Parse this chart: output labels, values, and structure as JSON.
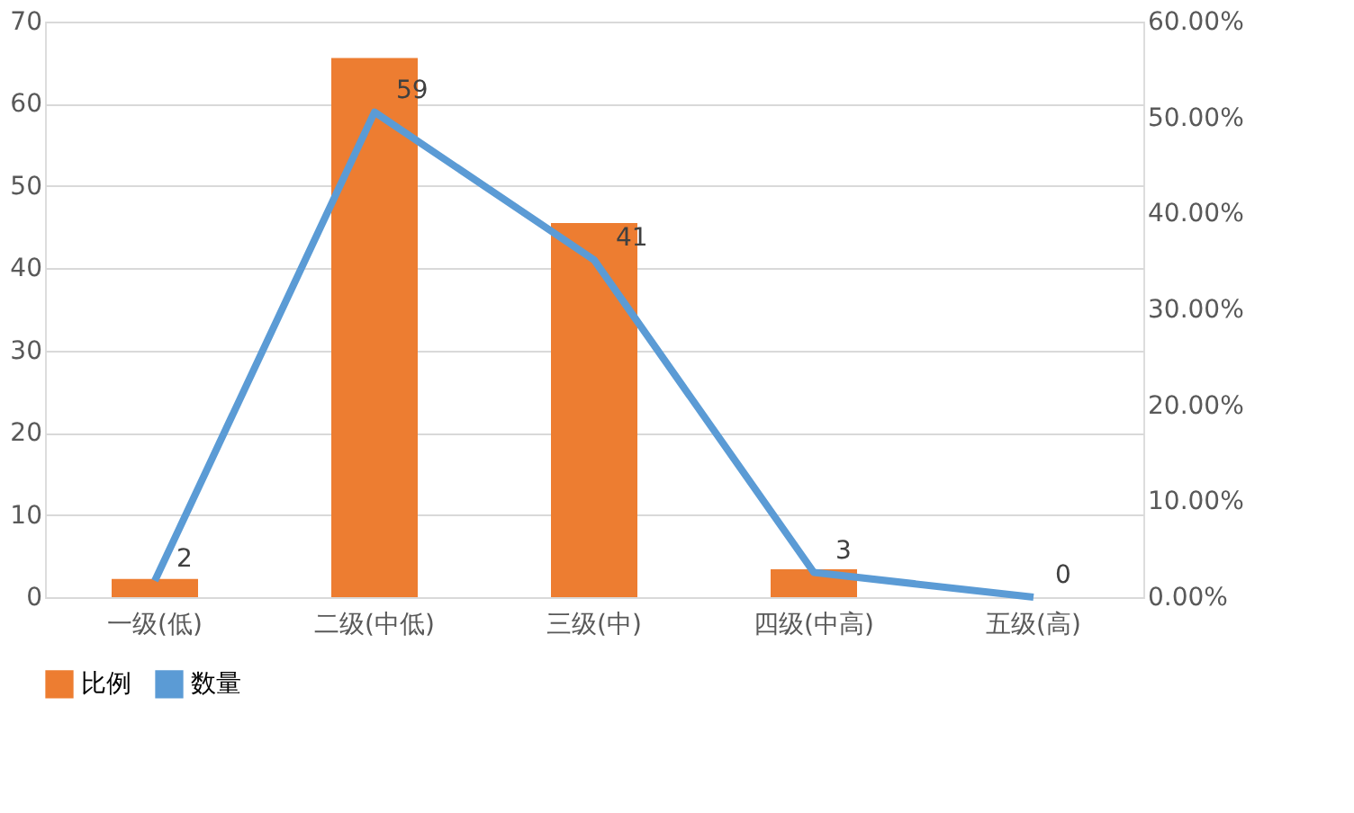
{
  "chart_data": {
    "type": "bar",
    "categories": [
      "一级(低)",
      "二级(中低)",
      "三级(中)",
      "四级(中高)",
      "五级(高)"
    ],
    "series": [
      {
        "name": "比例",
        "axis": "y2",
        "color": "#ed7d31",
        "values": [
          1.9,
          56.2,
          39.0,
          2.9,
          0
        ]
      },
      {
        "name": "数量",
        "type": "line",
        "color": "#5b9bd5",
        "values": [
          2,
          59,
          41,
          3,
          0
        ],
        "value_labels": [
          "2",
          "59",
          "41",
          "3",
          "0"
        ]
      }
    ],
    "ylim": [
      0,
      70
    ],
    "yticks": [
      0,
      10,
      20,
      30,
      40,
      50,
      60,
      70
    ],
    "y2lim": [
      0,
      60
    ],
    "y2ticks": [
      {
        "value": 0,
        "label": "0.00%"
      },
      {
        "value": 10,
        "label": "10.00%"
      },
      {
        "value": 20,
        "label": "20.00%"
      },
      {
        "value": 30,
        "label": "30.00%"
      },
      {
        "value": 40,
        "label": "40.00%"
      },
      {
        "value": 50,
        "label": "50.00%"
      },
      {
        "value": 60,
        "label": "60.00%"
      }
    ],
    "grid": "y",
    "legend": "bottom",
    "line_style": "solid"
  }
}
